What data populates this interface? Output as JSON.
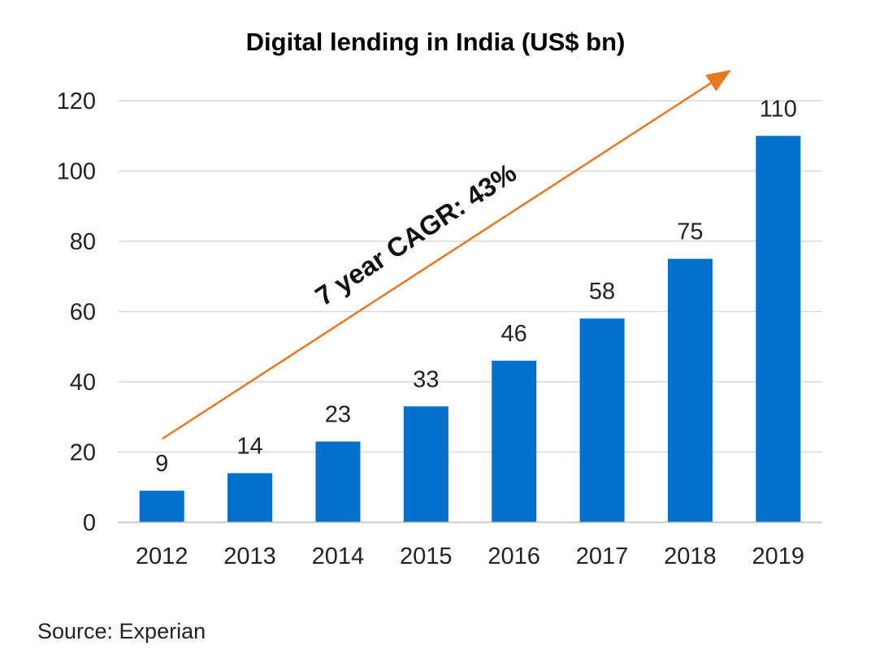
{
  "chart_data": {
    "type": "bar",
    "title": "Digital lending in India (US$ bn)",
    "categories": [
      "2012",
      "2013",
      "2014",
      "2015",
      "2016",
      "2017",
      "2018",
      "2019"
    ],
    "values": [
      9,
      14,
      23,
      33,
      46,
      58,
      75,
      110
    ],
    "data_labels": [
      "9",
      "14",
      "23",
      "33",
      "46",
      "58",
      "75",
      "110"
    ],
    "ylim": [
      0,
      120
    ],
    "yticks": [
      "0",
      "20",
      "40",
      "60",
      "80",
      "100",
      "120"
    ],
    "grid": true,
    "legend": "none",
    "annotation": "7 year CAGR: 43%",
    "source": "Source: Experian",
    "colors": {
      "bar": "#0070CC",
      "arrow": "#E87722",
      "grid": "#D9D9D9",
      "axis": "#BFBFBF"
    }
  }
}
